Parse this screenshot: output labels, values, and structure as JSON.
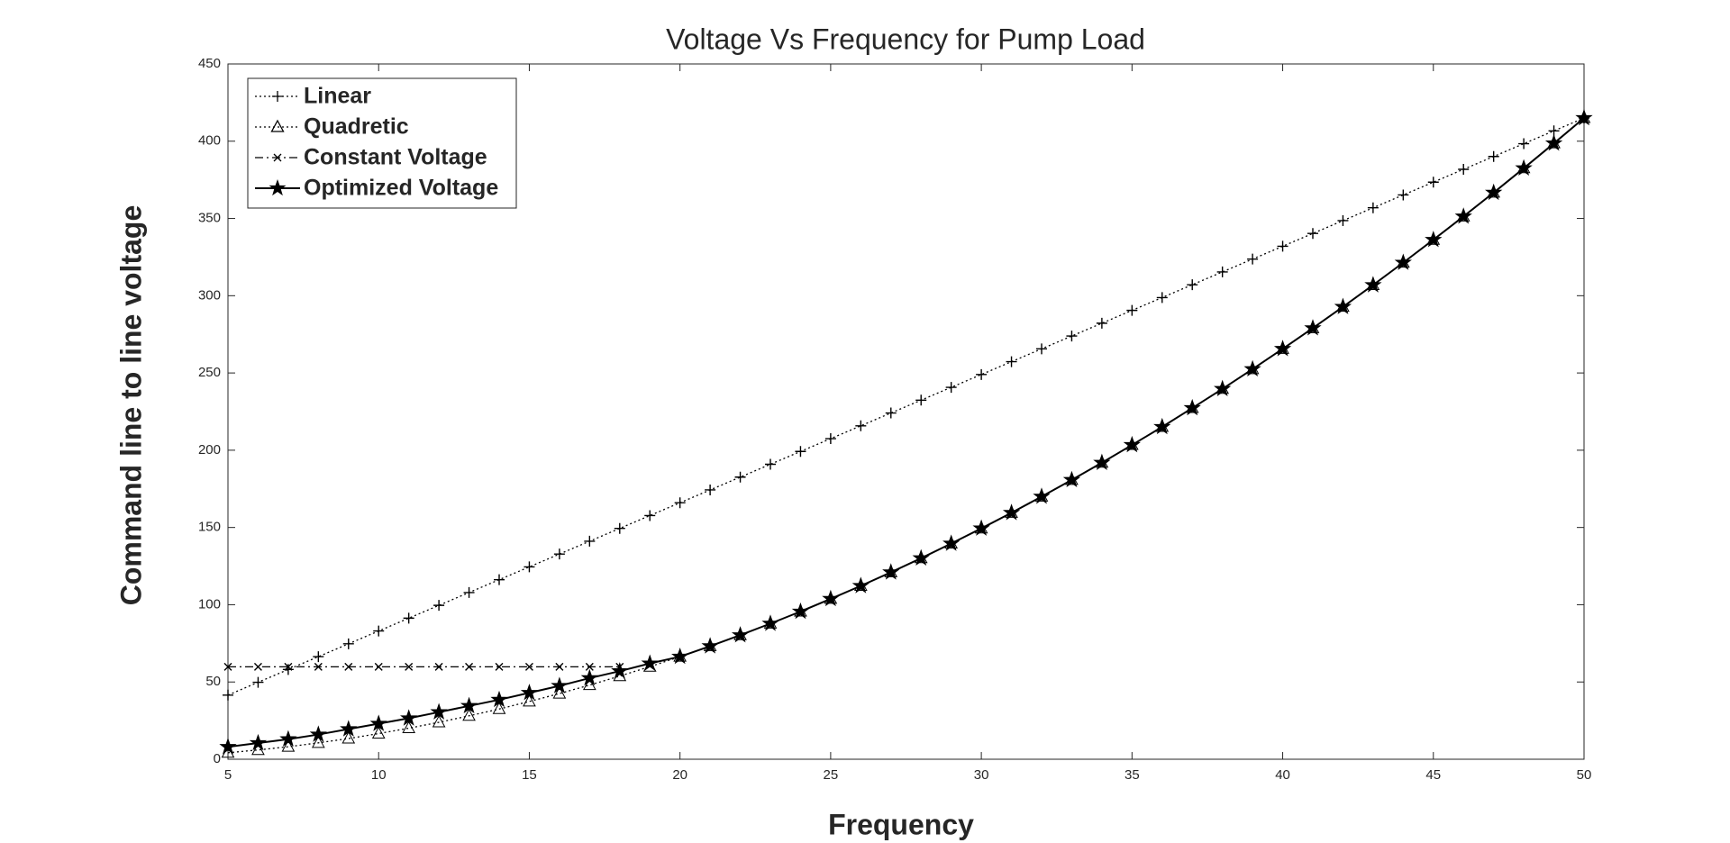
{
  "chart_data": {
    "type": "line",
    "title": "Voltage Vs Frequency for Pump Load",
    "xlabel": "Frequency",
    "ylabel": "Command line to line voltage",
    "x": [
      5,
      6,
      7,
      8,
      9,
      10,
      11,
      12,
      13,
      14,
      15,
      16,
      17,
      18,
      19,
      20,
      21,
      22,
      23,
      24,
      25,
      26,
      27,
      28,
      29,
      30,
      31,
      32,
      33,
      34,
      35,
      36,
      37,
      38,
      39,
      40,
      41,
      42,
      43,
      44,
      45,
      46,
      47,
      48,
      49,
      50
    ],
    "series": [
      {
        "name": "Linear",
        "color": "#000000",
        "marker": "plus",
        "linestyle": "dotted",
        "values": [
          41.5,
          49.8,
          58.1,
          66.4,
          74.7,
          83,
          91.3,
          99.6,
          107.9,
          116.2,
          124.5,
          132.8,
          141.1,
          149.4,
          157.7,
          166,
          174.3,
          182.6,
          190.9,
          199.2,
          207.5,
          215.8,
          224.1,
          232.4,
          240.7,
          249,
          257.3,
          265.6,
          273.9,
          282.2,
          290.5,
          298.8,
          307.1,
          315.4,
          323.7,
          332,
          340.3,
          348.6,
          356.9,
          365.2,
          373.5,
          381.8,
          390.1,
          398.4,
          406.7,
          415
        ]
      },
      {
        "name": "Quadretic",
        "color": "#000000",
        "marker": "triangle",
        "linestyle": "dotted",
        "values": [
          4.2,
          6.0,
          8.1,
          10.6,
          13.4,
          16.6,
          20.1,
          23.9,
          28.1,
          32.5,
          37.4,
          42.5,
          48.0,
          53.8,
          59.9,
          66.4,
          73.2,
          80.3,
          87.8,
          95.6,
          103.8,
          112.2,
          121.0,
          130.1,
          139.6,
          149.4,
          159.5,
          170.0,
          180.8,
          191.9,
          203.4,
          215.1,
          227.3,
          239.7,
          252.5,
          265.6,
          279.0,
          292.8,
          306.9,
          321.4,
          336.2,
          351.3,
          366.7,
          382.5,
          398.6,
          415.0
        ]
      },
      {
        "name": "Constant Voltage",
        "color": "#000000",
        "marker": "x",
        "linestyle": "dashdot",
        "values": [
          59.8,
          59.8,
          59.8,
          59.8,
          59.8,
          59.8,
          59.8,
          59.8,
          59.8,
          59.8,
          59.8,
          59.8,
          59.8,
          59.8,
          null,
          null,
          null,
          null,
          null,
          null,
          null,
          null,
          null,
          null,
          null,
          null,
          null,
          null,
          null,
          null,
          null,
          null,
          null,
          null,
          null,
          null,
          null,
          null,
          null,
          null,
          null,
          null,
          null,
          null,
          null,
          null
        ]
      },
      {
        "name": "Optimized Voltage",
        "color": "#000000",
        "marker": "star",
        "linestyle": "solid",
        "values": [
          8,
          10.5,
          13,
          16,
          19.5,
          23,
          26.5,
          30.5,
          34.5,
          38.5,
          43,
          47.5,
          52.5,
          57,
          62,
          66.4,
          73.2,
          80.3,
          87.8,
          95.6,
          103.8,
          112.2,
          121.0,
          130.1,
          139.6,
          149.4,
          159.5,
          170.0,
          180.8,
          191.9,
          203.4,
          215.1,
          227.3,
          239.7,
          252.5,
          265.6,
          279.0,
          292.8,
          306.9,
          321.4,
          336.2,
          351.3,
          366.7,
          382.5,
          398.6,
          415.0
        ]
      }
    ],
    "xlim": [
      5,
      50
    ],
    "xticks": [
      5,
      10,
      15,
      20,
      25,
      30,
      35,
      40,
      45,
      50
    ],
    "ylim": [
      0,
      450
    ],
    "yticks": [
      0,
      50,
      100,
      150,
      200,
      250,
      300,
      350,
      400,
      450
    ],
    "legend": "upper left",
    "grid": false
  }
}
